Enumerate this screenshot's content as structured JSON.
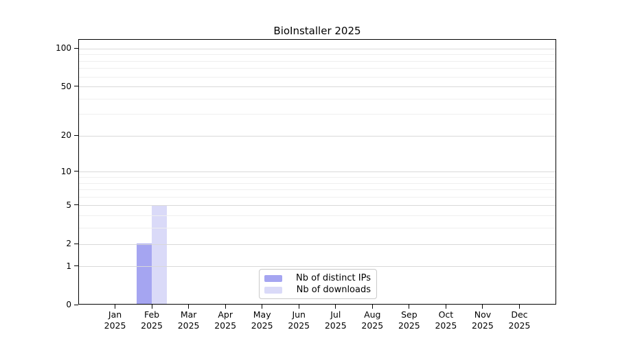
{
  "page": {
    "background": "#ffffff"
  },
  "chart_data": {
    "type": "bar",
    "title": "BioInstaller 2025",
    "categories": [
      "Jan 2025",
      "Feb 2025",
      "Mar 2025",
      "Apr 2025",
      "May 2025",
      "Jun 2025",
      "Jul 2025",
      "Aug 2025",
      "Sep 2025",
      "Oct 2025",
      "Nov 2025",
      "Dec 2025"
    ],
    "x_tick_top_labels": [
      "Jan",
      "Feb",
      "Mar",
      "Apr",
      "May",
      "Jun",
      "Jul",
      "Aug",
      "Sep",
      "Oct",
      "Nov",
      "Dec"
    ],
    "x_tick_bottom_label": "2025",
    "series": [
      {
        "name": "Nb of distinct IPs",
        "color": "#a5a5f1",
        "values": [
          0,
          2,
          0,
          0,
          0,
          0,
          0,
          0,
          0,
          0,
          0,
          0
        ]
      },
      {
        "name": "Nb of downloads",
        "color": "#dadaf8",
        "values": [
          0,
          5,
          0,
          0,
          0,
          0,
          0,
          0,
          0,
          0,
          0,
          0
        ]
      }
    ],
    "xlabel": "",
    "ylabel": "",
    "y_scale": "log1p",
    "y_ticks": [
      0,
      1,
      2,
      5,
      10,
      20,
      50,
      100
    ],
    "y_minor_gridlines": [
      3,
      4,
      6,
      7,
      8,
      9,
      30,
      40,
      60,
      70,
      80,
      90
    ],
    "ylim": [
      0,
      118
    ],
    "grid": "horizontal",
    "legend": {
      "position": "inside-bottom-center",
      "items": [
        "Nb of distinct IPs",
        "Nb of downloads"
      ]
    },
    "colors": {
      "axis": "#000000",
      "grid_major": "#d9d9d9",
      "grid_minor": "#efefef",
      "legend_border": "#c9c9c9",
      "text": "#000000",
      "background": "#ffffff"
    }
  }
}
